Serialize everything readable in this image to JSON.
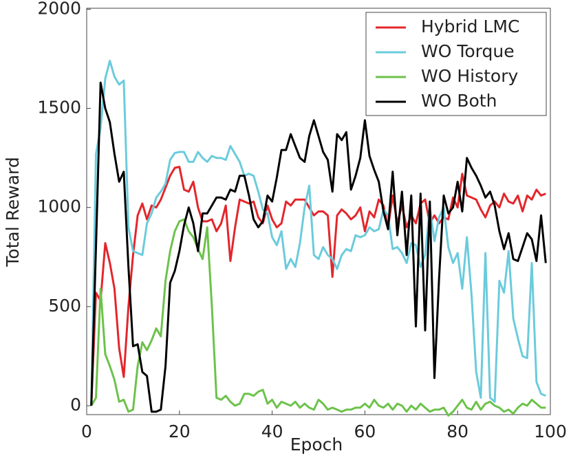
{
  "chart_data": {
    "type": "line",
    "xlabel": "Epoch",
    "ylabel": "Total Reward",
    "x": [
      1,
      2,
      3,
      4,
      5,
      6,
      7,
      8,
      9,
      10,
      11,
      12,
      13,
      14,
      15,
      16,
      17,
      18,
      19,
      20,
      21,
      22,
      23,
      24,
      25,
      26,
      27,
      28,
      29,
      30,
      31,
      32,
      33,
      34,
      35,
      36,
      37,
      38,
      39,
      40,
      41,
      42,
      43,
      44,
      45,
      46,
      47,
      48,
      49,
      50,
      51,
      52,
      53,
      54,
      55,
      56,
      57,
      58,
      59,
      60,
      61,
      62,
      63,
      64,
      65,
      66,
      67,
      68,
      69,
      70,
      71,
      72,
      73,
      74,
      75,
      76,
      77,
      78,
      79,
      80,
      81,
      82,
      83,
      84,
      85,
      86,
      87,
      88,
      89,
      90,
      91,
      92,
      93,
      94,
      95,
      96,
      97,
      98,
      99
    ],
    "series": [
      {
        "name": "Hybrid LMC",
        "color": "#e3262b",
        "values": [
          0,
          570,
          530,
          820,
          720,
          590,
          290,
          145,
          500,
          760,
          960,
          1020,
          940,
          1010,
          1000,
          1040,
          1100,
          1160,
          1200,
          1205,
          1090,
          1080,
          1130,
          1000,
          930,
          930,
          940,
          880,
          920,
          1010,
          730,
          900,
          1040,
          1030,
          1020,
          1030,
          950,
          920,
          1010,
          940,
          900,
          920,
          1030,
          1010,
          1040,
          1040,
          1040,
          1000,
          960,
          980,
          980,
          960,
          650,
          960,
          990,
          970,
          940,
          960,
          1000,
          880,
          980,
          950,
          1040,
          1010,
          900,
          1060,
          920,
          1010,
          900,
          960,
          920,
          1020,
          1040,
          920,
          960,
          920,
          950,
          940,
          1050,
          1000,
          1170,
          1060,
          1050,
          1040,
          990,
          950,
          1010,
          1030,
          1000,
          1070,
          1030,
          1020,
          1060,
          980,
          1060,
          1040,
          1090,
          1060,
          1070
        ]
      },
      {
        "name": "WO Torque",
        "color": "#6bcbdc",
        "values": [
          0,
          1270,
          1400,
          1650,
          1740,
          1660,
          1620,
          1640,
          900,
          780,
          770,
          760,
          920,
          970,
          1050,
          1080,
          1120,
          1240,
          1275,
          1280,
          1280,
          1230,
          1230,
          1280,
          1250,
          1230,
          1260,
          1250,
          1250,
          1240,
          1310,
          1270,
          1230,
          1160,
          1170,
          1160,
          1080,
          990,
          970,
          850,
          810,
          880,
          690,
          740,
          700,
          820,
          1000,
          1110,
          760,
          740,
          800,
          760,
          740,
          690,
          760,
          790,
          780,
          860,
          850,
          860,
          900,
          880,
          890,
          990,
          960,
          790,
          800,
          770,
          720,
          820,
          810,
          700,
          760,
          1000,
          830,
          950,
          1000,
          800,
          720,
          770,
          590,
          850,
          560,
          170,
          40,
          770,
          40,
          20,
          630,
          570,
          780,
          440,
          340,
          250,
          240,
          720,
          120,
          60,
          50
        ]
      },
      {
        "name": "WO History",
        "color": "#6cc24a",
        "values": [
          0,
          40,
          590,
          260,
          200,
          130,
          20,
          30,
          -30,
          -20,
          200,
          320,
          280,
          330,
          390,
          350,
          630,
          780,
          880,
          930,
          940,
          880,
          850,
          790,
          740,
          900,
          500,
          40,
          30,
          50,
          20,
          0,
          10,
          60,
          60,
          50,
          70,
          80,
          10,
          30,
          -10,
          20,
          10,
          0,
          20,
          -10,
          10,
          -10,
          -20,
          30,
          10,
          -20,
          -10,
          -20,
          -30,
          -20,
          -20,
          -10,
          -10,
          10,
          -10,
          30,
          0,
          -10,
          10,
          -20,
          10,
          0,
          -30,
          0,
          -20,
          10,
          -10,
          -30,
          -20,
          -20,
          -10,
          -50,
          -30,
          0,
          30,
          -10,
          -20,
          20,
          -20,
          10,
          20,
          0,
          -10,
          -30,
          -20,
          -40,
          -10,
          10,
          0,
          30,
          10,
          -10,
          -10
        ]
      },
      {
        "name": "WO Both",
        "color": "#000000",
        "values": [
          0,
          800,
          1630,
          1500,
          1430,
          1270,
          1130,
          1180,
          700,
          300,
          310,
          170,
          150,
          -30,
          -30,
          -20,
          200,
          620,
          680,
          780,
          910,
          1000,
          920,
          780,
          970,
          970,
          1010,
          1050,
          1050,
          1040,
          1090,
          1080,
          1160,
          1160,
          1060,
          940,
          900,
          930,
          1060,
          1030,
          1150,
          1290,
          1290,
          1370,
          1310,
          1250,
          1230,
          1360,
          1440,
          1360,
          1280,
          1240,
          1080,
          1370,
          1340,
          1380,
          1090,
          1160,
          1250,
          1440,
          1260,
          1190,
          1130,
          980,
          890,
          1180,
          860,
          1080,
          760,
          1060,
          400,
          1070,
          380,
          1030,
          140,
          640,
          1060,
          970,
          1000,
          1130,
          980,
          1250,
          1200,
          1160,
          1110,
          1050,
          1080,
          1010,
          880,
          790,
          870,
          740,
          730,
          800,
          870,
          840,
          730,
          960,
          720
        ]
      }
    ],
    "xlim": [
      0,
      100
    ],
    "xticks": [
      0,
      20,
      40,
      60,
      80,
      100
    ],
    "ylim": [
      -45,
      2005
    ],
    "yticks": [
      0,
      500,
      1000,
      1500,
      2000
    ],
    "legend": "upper right"
  }
}
